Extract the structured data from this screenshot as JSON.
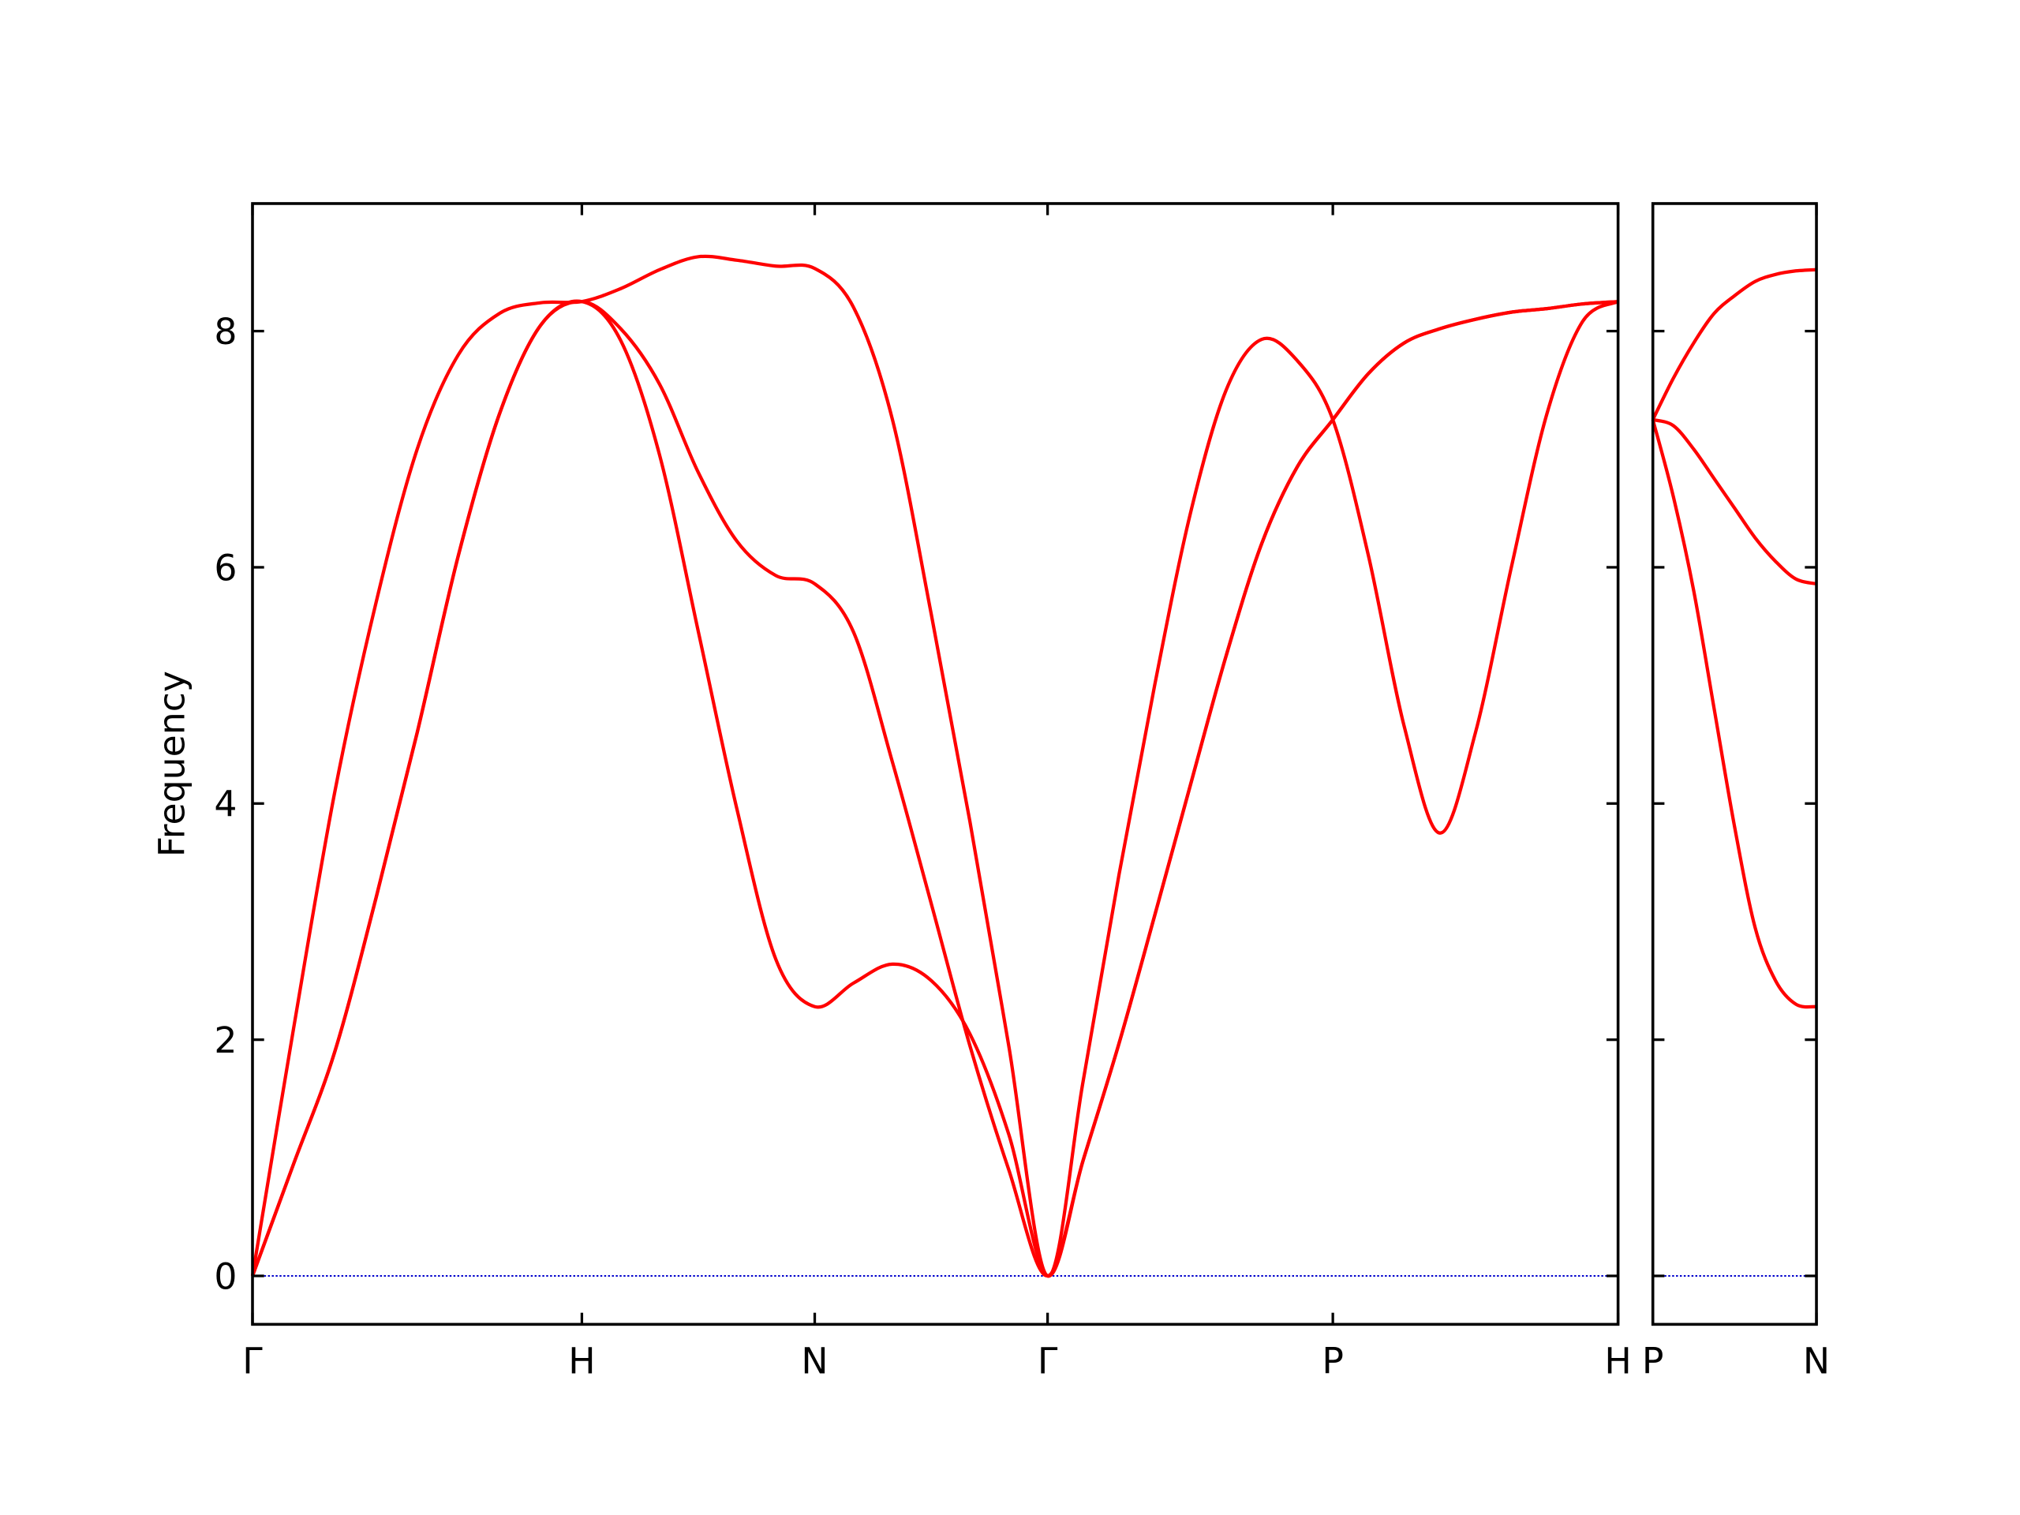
{
  "chart_data": [
    {
      "type": "line",
      "ylabel": "Frequency",
      "x": [
        0,
        0.125,
        0.25,
        0.375,
        0.5,
        0.625,
        0.75,
        0.875,
        1,
        1.118,
        1.236,
        1.354,
        1.471,
        1.589,
        1.707,
        1.825,
        1.943,
        2.061,
        2.178,
        2.296,
        2.414,
        2.522,
        2.631,
        2.739,
        2.847,
        2.956,
        3.064,
        3.172,
        3.28,
        3.388,
        3.497,
        3.605,
        3.713,
        3.822,
        3.93,
        4.038,
        4.146
      ],
      "series": [
        {
          "color": "#ff0000",
          "values": [
            0,
            0.95,
            1.9,
            3.2,
            4.6,
            6.1,
            7.3,
            8.05,
            8.25,
            7.92,
            6.95,
            5.45,
            3.95,
            2.68,
            2.28,
            2.48,
            2.64,
            2.5,
            2.05,
            1.2,
            0,
            0.98,
            1.97,
            3.05,
            4.15,
            5.25,
            6.2,
            6.85,
            7.25,
            7.64,
            7.9,
            8.02,
            8.1,
            8.16,
            8.19,
            8.23,
            8.25
          ]
        },
        {
          "color": "#ff0000",
          "values": [
            0,
            0.95,
            1.9,
            3.2,
            4.6,
            6.1,
            7.3,
            8.05,
            8.25,
            8.02,
            7.55,
            6.8,
            6.22,
            5.93,
            5.86,
            5.45,
            4.35,
            3.15,
            1.95,
            0.9,
            0,
            0.98,
            1.97,
            3.05,
            4.15,
            5.25,
            6.2,
            6.85,
            7.25,
            7.64,
            7.9,
            8.02,
            8.1,
            8.16,
            8.19,
            8.23,
            8.25
          ]
        },
        {
          "color": "#ff0000",
          "values": [
            0,
            2.1,
            4.1,
            5.7,
            7.0,
            7.8,
            8.15,
            8.24,
            8.25,
            8.36,
            8.52,
            8.63,
            8.6,
            8.55,
            8.53,
            8.2,
            7.25,
            5.6,
            3.85,
            1.95,
            0,
            1.65,
            3.4,
            5.0,
            6.45,
            7.5,
            7.93,
            7.75,
            7.25,
            6.1,
            4.65,
            3.75,
            4.6,
            6.0,
            7.3,
            8.08,
            8.25
          ]
        }
      ],
      "xlim": [
        0,
        4.146
      ],
      "xticks": [
        {
          "value": 0,
          "label": "Γ"
        },
        {
          "value": 1,
          "label": "H"
        },
        {
          "value": 1.707,
          "label": "N"
        },
        {
          "value": 2.414,
          "label": "Γ"
        },
        {
          "value": 3.28,
          "label": "P"
        },
        {
          "value": 4.146,
          "label": "H"
        }
      ],
      "ylim": [
        -0.41,
        9.08
      ],
      "yticks": [
        0,
        2,
        4,
        6,
        8
      ],
      "ytick_labels": true,
      "zero_line_color": "#0000cc"
    },
    {
      "type": "line",
      "x": [
        4.146,
        4.2085,
        4.271,
        4.3335,
        4.396,
        4.4585,
        4.521,
        4.5835,
        4.646
      ],
      "series": [
        {
          "color": "#ff0000",
          "values": [
            7.25,
            6.6,
            5.8,
            4.8,
            3.8,
            2.95,
            2.5,
            2.3,
            2.28
          ]
        },
        {
          "color": "#ff0000",
          "values": [
            7.25,
            7.2,
            7.0,
            6.75,
            6.5,
            6.25,
            6.05,
            5.9,
            5.86
          ]
        },
        {
          "color": "#ff0000",
          "values": [
            7.25,
            7.6,
            7.9,
            8.15,
            8.3,
            8.42,
            8.48,
            8.51,
            8.52
          ]
        }
      ],
      "xlim": [
        4.146,
        4.646
      ],
      "xticks": [
        {
          "value": 4.146,
          "label": "P"
        },
        {
          "value": 4.646,
          "label": "N"
        }
      ],
      "ylim": [
        -0.41,
        9.08
      ],
      "yticks": [
        0,
        2,
        4,
        6,
        8
      ],
      "ytick_labels": false,
      "zero_line_color": "#0000cc"
    }
  ]
}
